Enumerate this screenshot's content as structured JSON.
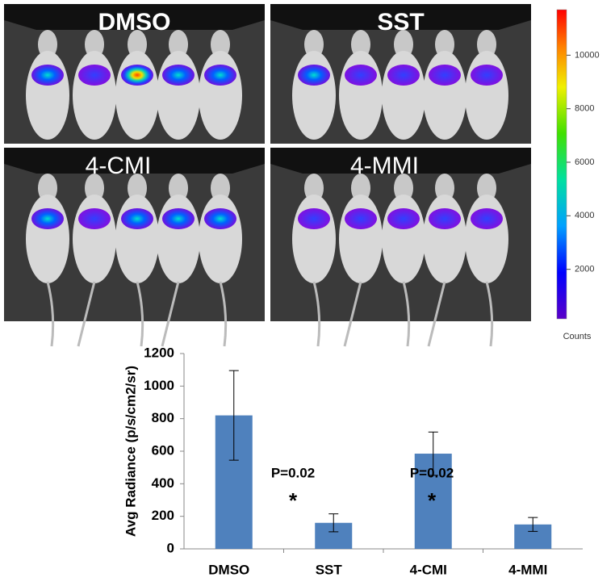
{
  "panels": [
    "DMSO",
    "SST",
    "4-CMI",
    "4-MMI"
  ],
  "colorbar": {
    "label": "Counts",
    "lim": [
      150,
      11700
    ],
    "ticks": [
      2000,
      4000,
      6000,
      8000,
      10000
    ]
  },
  "chart_data": {
    "type": "bar",
    "y_label": "Avg Radiance (p/s/cm2/sr)",
    "categories": [
      "DMSO",
      "SST",
      "4-CMI",
      "4-MMI"
    ],
    "values": [
      820,
      160,
      585,
      150
    ],
    "errors": [
      275,
      55,
      133,
      43
    ],
    "color": "#4f81bd",
    "ylim": [
      0,
      1200
    ],
    "yticks": [
      0,
      200,
      400,
      600,
      800,
      1000,
      1200
    ],
    "annotations": [
      "P=0.02",
      "*",
      "P=0.02",
      "*"
    ]
  }
}
